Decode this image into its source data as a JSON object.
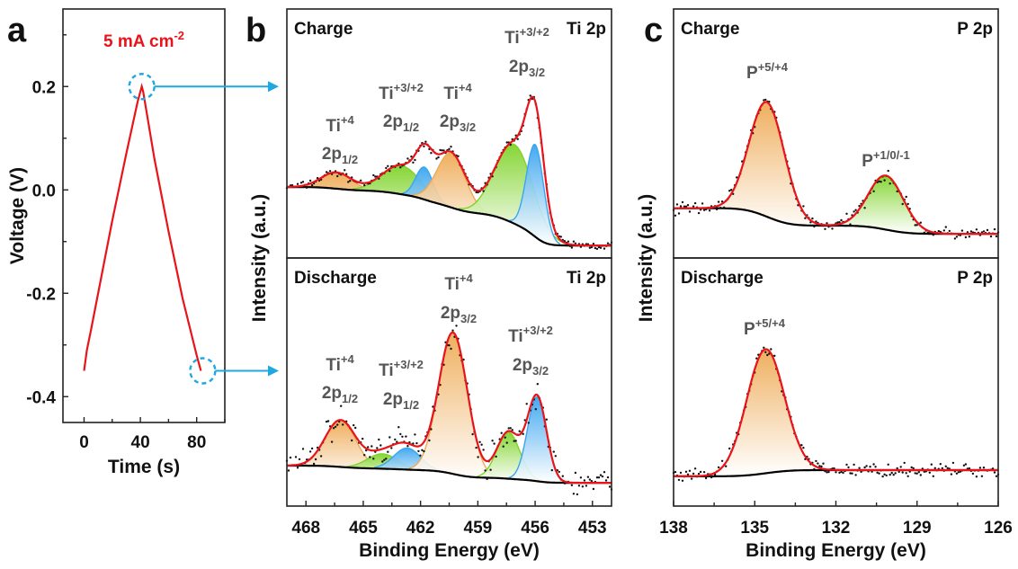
{
  "panel_letters": {
    "a": "a",
    "b": "b",
    "c": "c"
  },
  "colors": {
    "fit": "#e8141a",
    "background": "#000000",
    "data": "#111111",
    "orange": "#eeaa55",
    "green": "#7fd32a",
    "blue": "#3aa5ef",
    "marker": "#1ea7e1"
  },
  "chart_data": [
    {
      "id": "a",
      "type": "line",
      "annotation": "5 mA cm",
      "annotation_sup": "-2",
      "xlabel": "Time (s)",
      "ylabel": "Voltage (V)",
      "xlim": [
        -15,
        100
      ],
      "ylim": [
        -0.45,
        0.35
      ],
      "xticks": [
        0,
        40,
        80
      ],
      "xtick_labels": [
        "0",
        "40",
        "80"
      ],
      "yticks": [
        0.2,
        0.0,
        -0.2,
        -0.4
      ],
      "ytick_labels": [
        "0.2",
        "0.0",
        "-0.2",
        "-0.4"
      ],
      "series": [
        {
          "x": [
            0,
            2,
            5,
            10,
            20,
            30,
            38,
            41,
            42,
            50,
            60,
            70,
            80,
            83
          ],
          "y": [
            -0.35,
            -0.31,
            -0.27,
            -0.2,
            -0.06,
            0.07,
            0.17,
            0.2,
            0.19,
            0.06,
            -0.08,
            -0.21,
            -0.32,
            -0.35
          ]
        }
      ],
      "markers": [
        {
          "x": 41,
          "y": 0.2
        },
        {
          "x": 83,
          "y": -0.35
        }
      ]
    },
    {
      "id": "b-charge",
      "type": "line",
      "title": "Charge",
      "element": "Ti 2p",
      "ylabel": "Intensity (a.u.)",
      "xlim": [
        469,
        452
      ],
      "ylim": [
        0,
        100
      ],
      "background": {
        "high_be": 28.5,
        "low_be": 5
      },
      "peaks": [
        {
          "center": 466.4,
          "height": 6.5,
          "sigma": 0.8,
          "color": "orange"
        },
        {
          "center": 463.0,
          "height": 11.5,
          "sigma": 1.0,
          "color": "green"
        },
        {
          "center": 461.8,
          "height": 13,
          "sigma": 0.45,
          "color": "blue"
        },
        {
          "center": 460.4,
          "height": 21.7,
          "sigma": 0.75,
          "color": "orange"
        },
        {
          "center": 457.1,
          "height": 31.8,
          "sigma": 1.0,
          "color": "green"
        },
        {
          "center": 456.0,
          "height": 37,
          "sigma": 0.45,
          "color": "blue"
        }
      ],
      "noise": 1.2,
      "labels": [
        {
          "el": "Ti",
          "sup": "+4",
          "orb": "2p",
          "sub": "1/2"
        },
        {
          "el": "Ti",
          "sup": "+3/+2",
          "orb": "2p",
          "sub": "1/2"
        },
        {
          "el": "Ti",
          "sup": "+4",
          "orb": "2p",
          "sub": "3/2"
        },
        {
          "el": "Ti",
          "sup": "+3/+2",
          "orb": "2p",
          "sub": "3/2"
        }
      ]
    },
    {
      "id": "b-discharge",
      "type": "line",
      "title": "Discharge",
      "element": "Ti 2p",
      "xlabel": "Binding Energy (eV)",
      "xlim": [
        469,
        452
      ],
      "ylim": [
        0,
        100
      ],
      "xticks": [
        468,
        465,
        462,
        459,
        456,
        453
      ],
      "xtick_labels": [
        "468",
        "465",
        "462",
        "459",
        "456",
        "453"
      ],
      "background": {
        "high_be": 16.3,
        "low_be": 9.4
      },
      "peaks": [
        {
          "center": 466.2,
          "height": 18.8,
          "sigma": 0.8,
          "color": "orange"
        },
        {
          "center": 464.0,
          "height": 6,
          "sigma": 0.8,
          "color": "green"
        },
        {
          "center": 462.7,
          "height": 8.7,
          "sigma": 0.7,
          "color": "blue"
        },
        {
          "center": 460.3,
          "height": 57,
          "sigma": 0.75,
          "color": "orange"
        },
        {
          "center": 457.4,
          "height": 18.8,
          "sigma": 0.6,
          "color": "green"
        },
        {
          "center": 455.9,
          "height": 34,
          "sigma": 0.5,
          "color": "blue"
        }
      ],
      "noise": 4,
      "labels": [
        {
          "el": "Ti",
          "sup": "+4",
          "orb": "2p",
          "sub": "1/2"
        },
        {
          "el": "Ti",
          "sup": "+3/+2",
          "orb": "2p",
          "sub": "1/2"
        },
        {
          "el": "Ti",
          "sup": "+4",
          "orb": "2p",
          "sub": "3/2"
        },
        {
          "el": "Ti",
          "sup": "+3/+2",
          "orb": "2p",
          "sub": "3/2"
        }
      ]
    },
    {
      "id": "c-charge",
      "type": "line",
      "title": "Charge",
      "element": "P 2p",
      "ylabel": "Intensity (a.u.)",
      "xlim": [
        138,
        126
      ],
      "ylim": [
        0,
        100
      ],
      "background": {
        "high_be": 20,
        "low_be": 9.7
      },
      "peaks": [
        {
          "center": 134.55,
          "height": 46,
          "sigma": 0.65,
          "color": "orange"
        },
        {
          "center": 130.15,
          "height": 21.7,
          "sigma": 0.65,
          "color": "green"
        }
      ],
      "noise": 1.8,
      "labels": [
        {
          "el": "P",
          "sup": "+5/+4",
          "orb": "",
          "sub": ""
        },
        {
          "el": "P",
          "sup": "+1/0/-1",
          "orb": "",
          "sub": ""
        }
      ]
    },
    {
      "id": "c-discharge",
      "type": "line",
      "title": "Discharge",
      "element": "P 2p",
      "xlabel": "Binding Energy (eV)",
      "xlim": [
        138,
        126
      ],
      "ylim": [
        0,
        100
      ],
      "xticks": [
        138,
        135,
        132,
        129,
        126
      ],
      "xtick_labels": [
        "138",
        "135",
        "132",
        "129",
        "126"
      ],
      "background": {
        "high_be": 12,
        "low_be": 14.5
      },
      "peaks": [
        {
          "center": 134.6,
          "height": 50,
          "sigma": 0.7,
          "color": "orange"
        }
      ],
      "noise": 1.8,
      "labels": [
        {
          "el": "P",
          "sup": "+5/+4",
          "orb": "",
          "sub": ""
        }
      ]
    }
  ]
}
